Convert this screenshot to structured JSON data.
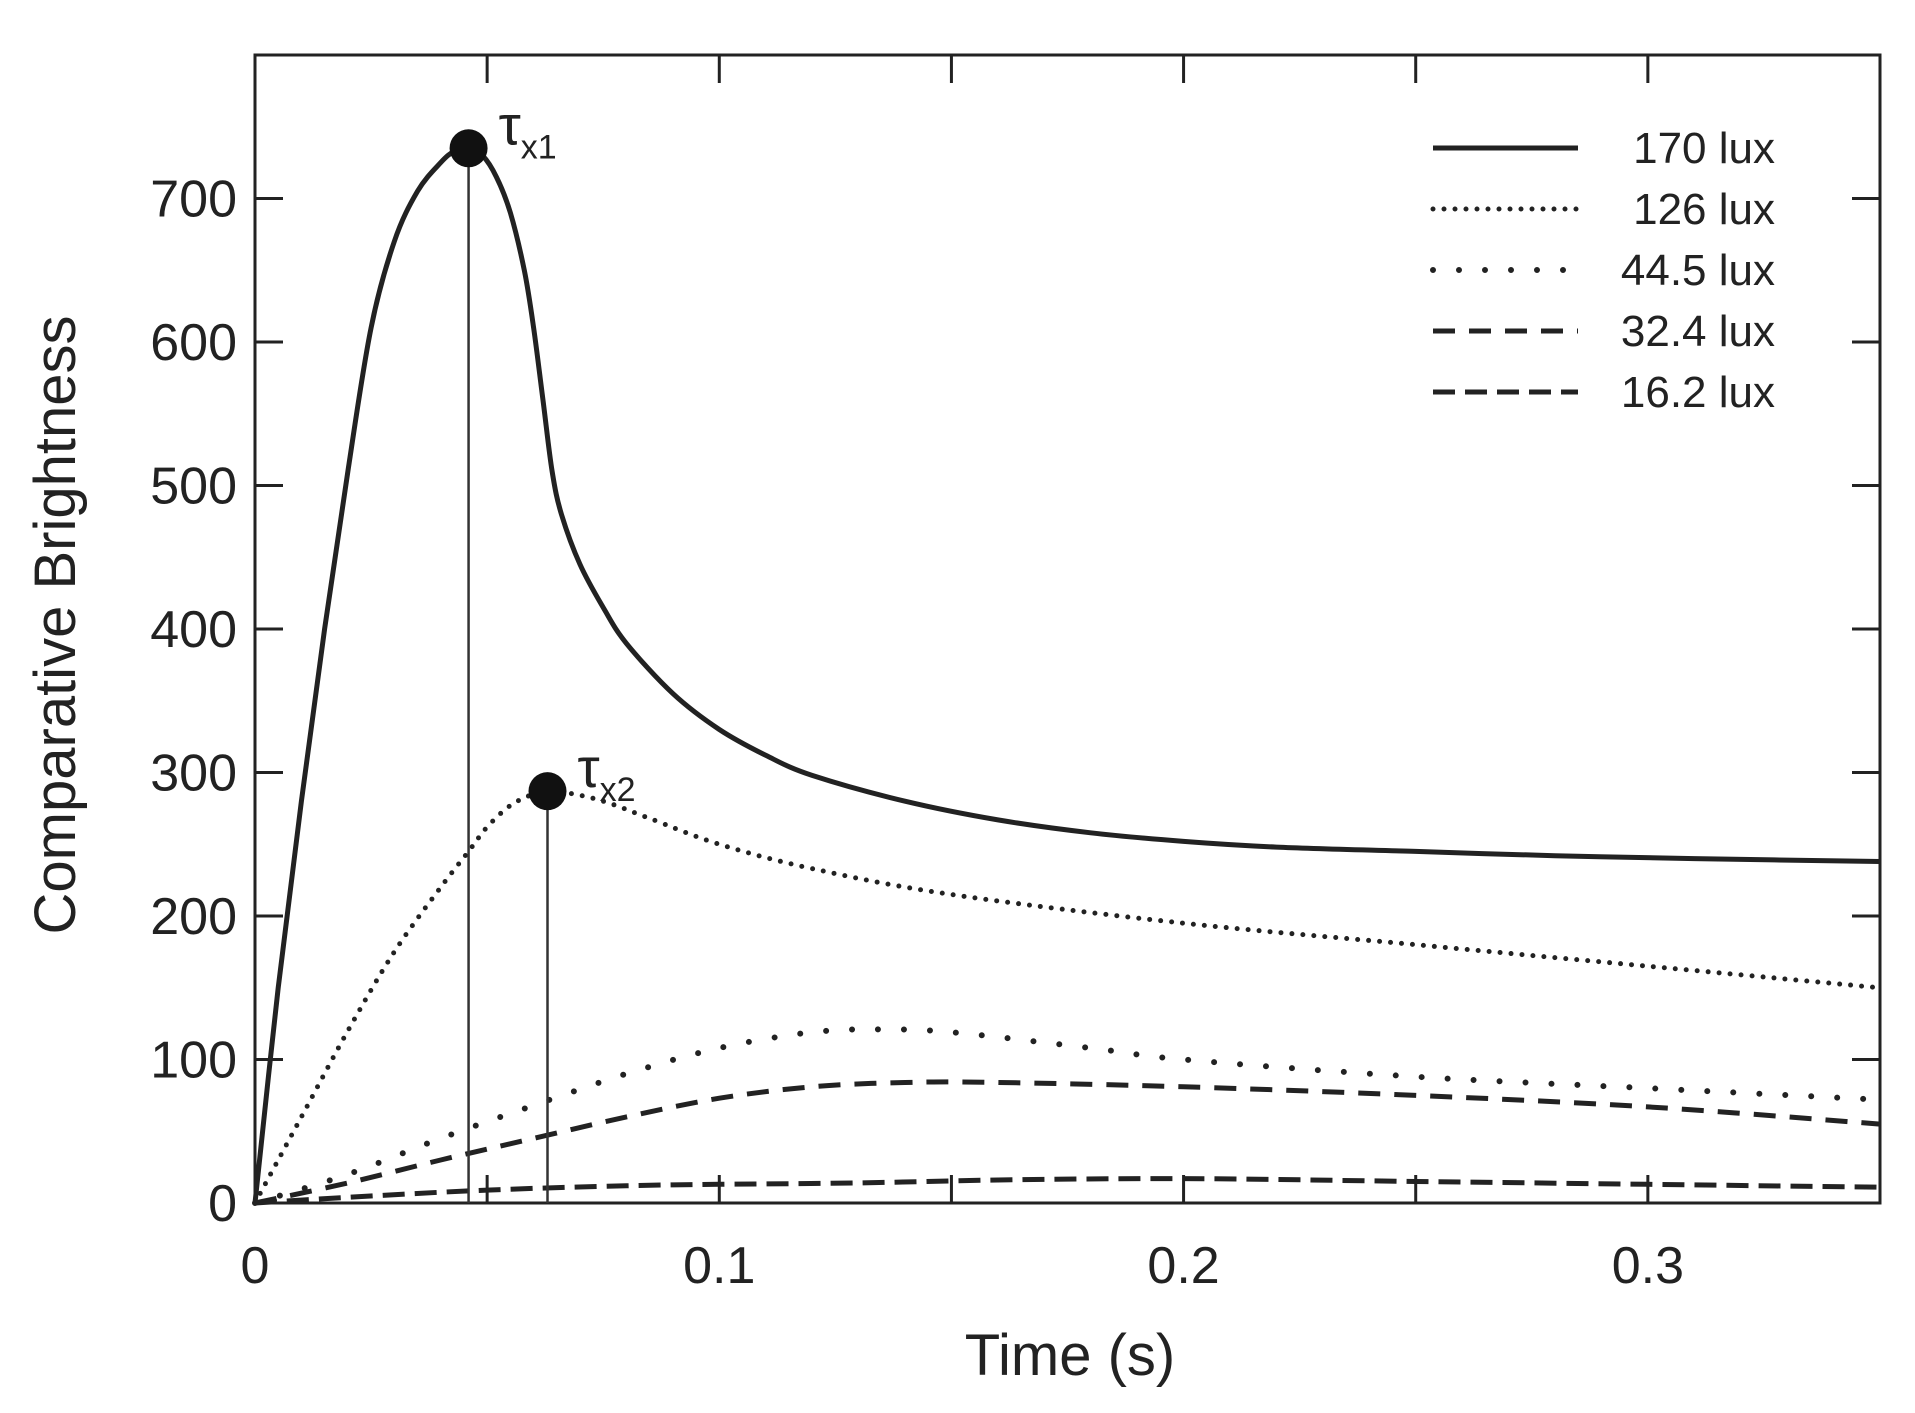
{
  "chart_data": {
    "type": "line",
    "title": "",
    "xlabel": "Time (s)",
    "ylabel": "Comparative Brightness",
    "xlim": [
      0,
      0.35
    ],
    "ylim": [
      0,
      800
    ],
    "xticks": [
      0,
      0.1,
      0.2,
      0.3
    ],
    "xtick_labels": [
      "0",
      "0.1",
      "0.2",
      "0.3"
    ],
    "yticks": [
      0,
      100,
      200,
      300,
      400,
      500,
      600,
      700
    ],
    "ytick_labels": [
      "0",
      "100",
      "200",
      "300",
      "400",
      "500",
      "600",
      "700"
    ],
    "grid": false,
    "legend_position": "top-right",
    "series": [
      {
        "name": "170 lux",
        "style": "solid",
        "x": [
          0,
          0.005,
          0.01,
          0.015,
          0.02,
          0.025,
          0.03,
          0.035,
          0.04,
          0.043,
          0.046,
          0.049,
          0.052,
          0.055,
          0.058,
          0.06,
          0.062,
          0.064,
          0.066,
          0.07,
          0.075,
          0.08,
          0.09,
          0.1,
          0.11,
          0.12,
          0.14,
          0.16,
          0.18,
          0.2,
          0.22,
          0.25,
          0.28,
          0.31,
          0.35
        ],
        "y": [
          0,
          150,
          280,
          400,
          510,
          610,
          670,
          705,
          725,
          733,
          735,
          730,
          715,
          690,
          650,
          610,
          560,
          510,
          480,
          445,
          415,
          390,
          355,
          330,
          312,
          298,
          280,
          267,
          258,
          252,
          248,
          245,
          242,
          240,
          238
        ]
      },
      {
        "name": "126 lux",
        "style": "dense-dotted",
        "x": [
          0,
          0.01,
          0.02,
          0.03,
          0.04,
          0.046,
          0.05,
          0.055,
          0.06,
          0.063,
          0.067,
          0.075,
          0.085,
          0.1,
          0.12,
          0.15,
          0.2,
          0.25,
          0.3,
          0.35
        ],
        "y": [
          0,
          60,
          120,
          175,
          220,
          245,
          262,
          277,
          285,
          287,
          286,
          280,
          268,
          250,
          233,
          215,
          195,
          180,
          165,
          150
        ]
      },
      {
        "name": "44.5 lux",
        "style": "sparse-dotted",
        "x": [
          0,
          0.02,
          0.04,
          0.06,
          0.08,
          0.1,
          0.12,
          0.135,
          0.15,
          0.18,
          0.2,
          0.25,
          0.3,
          0.35
        ],
        "y": [
          0,
          20,
          45,
          68,
          90,
          108,
          119,
          121,
          119,
          108,
          100,
          88,
          80,
          72
        ]
      },
      {
        "name": "32.4 lux",
        "style": "dashed",
        "x": [
          0,
          0.02,
          0.04,
          0.06,
          0.08,
          0.1,
          0.12,
          0.14,
          0.16,
          0.2,
          0.25,
          0.3,
          0.35
        ],
        "y": [
          0,
          14,
          30,
          45,
          60,
          73,
          81,
          84,
          84,
          81,
          75,
          67,
          55
        ]
      },
      {
        "name": "16.2 lux",
        "style": "dashed-bold",
        "x": [
          0,
          0.02,
          0.05,
          0.08,
          0.1,
          0.13,
          0.16,
          0.2,
          0.25,
          0.3,
          0.35
        ],
        "y": [
          0,
          4,
          9,
          12,
          13,
          14,
          16,
          17,
          15,
          13,
          11
        ]
      }
    ],
    "annotations": [
      {
        "label": "τ",
        "subscript": "x1",
        "x": 0.046,
        "y": 735
      },
      {
        "label": "τ",
        "subscript": "x2",
        "x": 0.063,
        "y": 287
      }
    ]
  }
}
